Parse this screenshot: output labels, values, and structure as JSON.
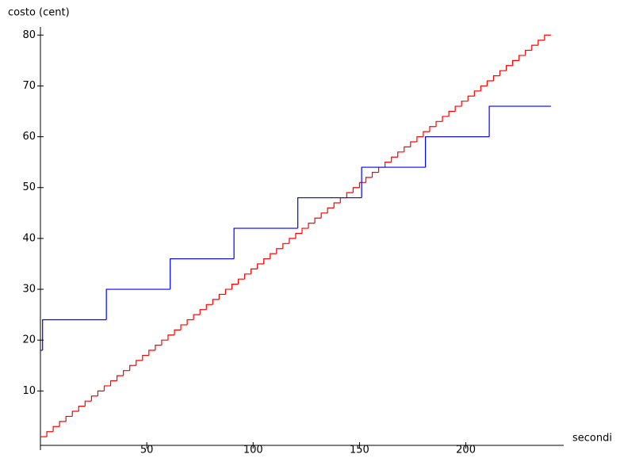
{
  "chart_data": {
    "type": "step",
    "x_label": "secondi",
    "y_label": "costo (cent)",
    "xlim": [
      0,
      246
    ],
    "ylim": [
      -0.7,
      81.6
    ],
    "xticks": [
      50,
      100,
      150,
      200
    ],
    "yticks": [
      10,
      20,
      30,
      40,
      50,
      60,
      70,
      80
    ],
    "series": [
      {
        "color": "#ff0000",
        "x": [
          0,
          3,
          6,
          9,
          12,
          15,
          18,
          21,
          24,
          27,
          30,
          33,
          36,
          39,
          42,
          45,
          48,
          51,
          54,
          57,
          60,
          63,
          66,
          69,
          72,
          75,
          78,
          81,
          84,
          87,
          90,
          93,
          96,
          99,
          102,
          105,
          108,
          111,
          114,
          117,
          120,
          123,
          126,
          129,
          132,
          135,
          138,
          141,
          144,
          147,
          150,
          153,
          156,
          159,
          162,
          165,
          168,
          171,
          174,
          177,
          180,
          183,
          186,
          189,
          192,
          195,
          198,
          201,
          204,
          207,
          210,
          213,
          216,
          219,
          222,
          225,
          228,
          231,
          234,
          237,
          240
        ],
        "values": [
          1,
          2,
          3,
          4,
          5,
          6,
          7,
          8,
          9,
          10,
          11,
          12,
          13,
          14,
          15,
          16,
          17,
          18,
          19,
          20,
          21,
          22,
          23,
          24,
          25,
          26,
          27,
          28,
          29,
          30,
          31,
          32,
          33,
          34,
          35,
          36,
          37,
          38,
          39,
          40,
          41,
          42,
          43,
          44,
          45,
          46,
          47,
          48,
          49,
          50,
          51,
          52,
          53,
          54,
          55,
          56,
          57,
          58,
          59,
          60,
          61,
          62,
          63,
          64,
          65,
          66,
          67,
          68,
          69,
          70,
          71,
          72,
          73,
          74,
          75,
          76,
          77,
          78,
          79,
          80,
          80
        ]
      },
      {
        "color": "#0000ff",
        "x": [
          0,
          1,
          31,
          61,
          91,
          121,
          151,
          181,
          211,
          240
        ],
        "values": [
          18,
          24,
          30,
          36,
          42,
          48,
          54,
          60,
          66,
          66
        ]
      }
    ]
  }
}
